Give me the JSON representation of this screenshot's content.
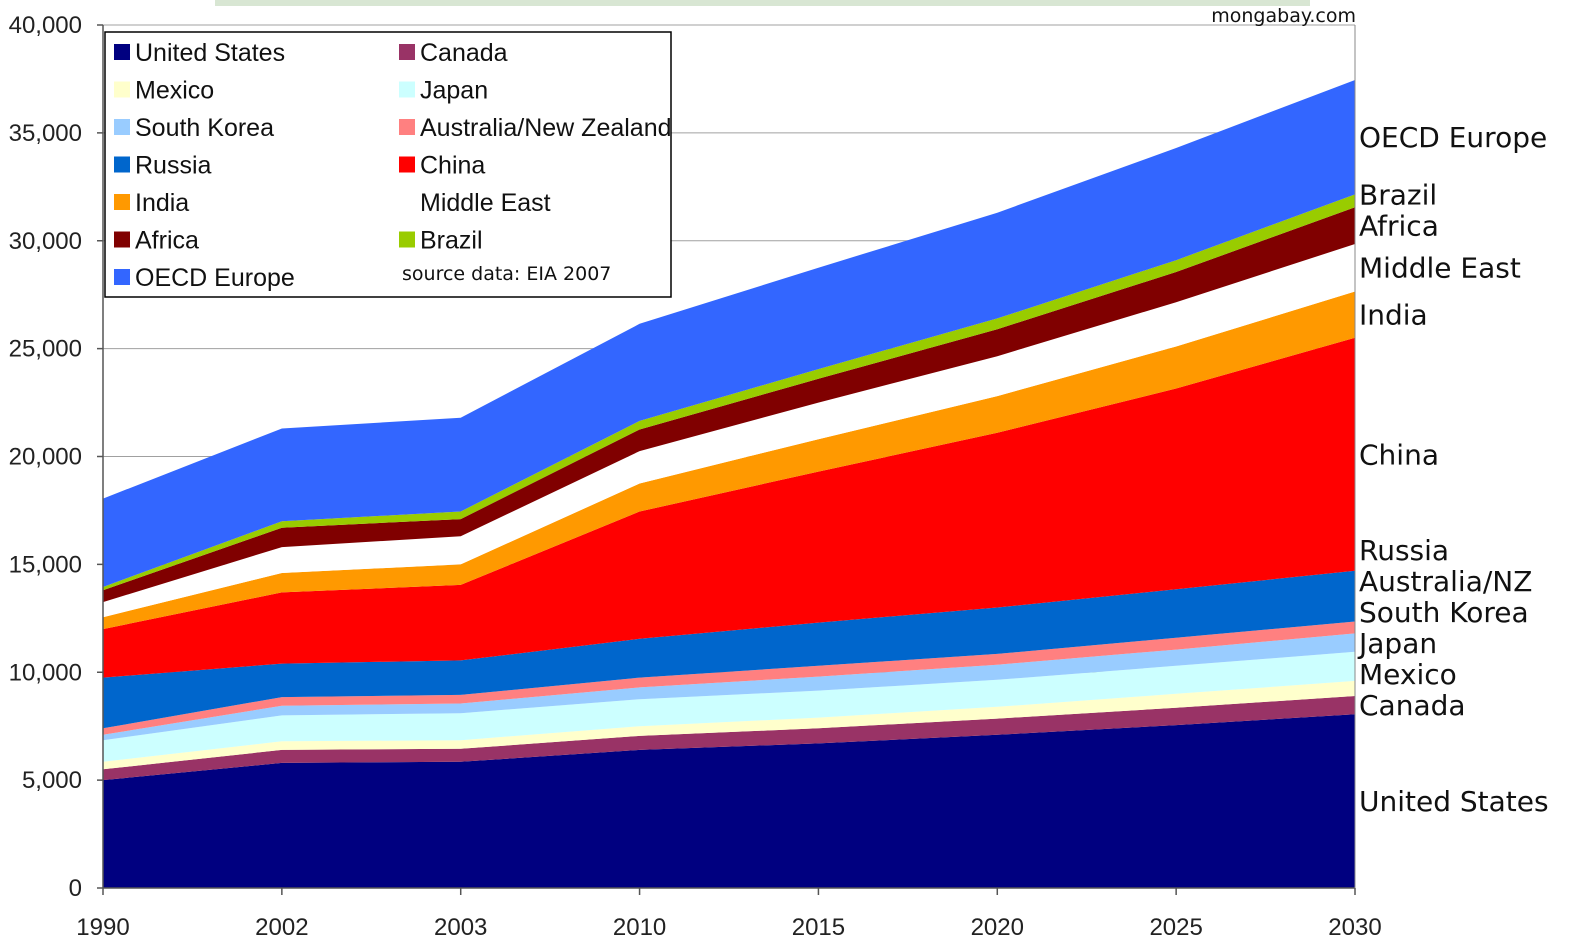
{
  "watermark": "mongabay.com",
  "chart_data": {
    "type": "area",
    "stacked": true,
    "x": [
      "1990",
      "2002",
      "2003",
      "2010",
      "2015",
      "2020",
      "2025",
      "2030"
    ],
    "ylim": [
      0,
      40000
    ],
    "yticks": [
      0,
      5000,
      10000,
      15000,
      20000,
      25000,
      30000,
      35000,
      40000
    ],
    "ytick_labels": [
      "0",
      "5,000",
      "10,000",
      "15,000",
      "20,000",
      "25,000",
      "30,000",
      "35,000",
      "40,000"
    ],
    "grid": "horizontal",
    "legend_position": "top-left",
    "source_note": "source data: EIA 2007",
    "series": [
      {
        "name": "United States",
        "color": "#000080",
        "values": [
          5000,
          5800,
          5850,
          6400,
          6700,
          7100,
          7550,
          8050
        ],
        "side_label": "United States"
      },
      {
        "name": "Canada",
        "color": "#993366",
        "values": [
          500,
          600,
          600,
          650,
          700,
          750,
          800,
          850
        ],
        "side_label": "Canada"
      },
      {
        "name": "Mexico",
        "color": "#ffffcc",
        "values": [
          350,
          400,
          400,
          450,
          500,
          550,
          650,
          700
        ],
        "side_label": "Mexico"
      },
      {
        "name": "Japan",
        "color": "#ccffff",
        "values": [
          1000,
          1200,
          1250,
          1250,
          1250,
          1250,
          1300,
          1350
        ],
        "side_label": "Japan"
      },
      {
        "name": "South Korea",
        "color": "#99ccff",
        "values": [
          250,
          450,
          450,
          550,
          650,
          700,
          750,
          850
        ],
        "side_label": "South Korea"
      },
      {
        "name": "Australia/New Zealand",
        "color": "#ff8080",
        "values": [
          300,
          400,
          400,
          450,
          500,
          500,
          550,
          550
        ],
        "side_label": "Australia/NZ"
      },
      {
        "name": "Russia",
        "color": "#0066cc",
        "values": [
          2350,
          1550,
          1600,
          1800,
          2000,
          2150,
          2250,
          2350
        ],
        "side_label": "Russia"
      },
      {
        "name": "China",
        "color": "#ff0000",
        "values": [
          2250,
          3300,
          3500,
          5900,
          7000,
          8100,
          9300,
          10800
        ],
        "side_label": "China"
      },
      {
        "name": "India",
        "color": "#ff9900",
        "values": [
          550,
          900,
          950,
          1300,
          1500,
          1700,
          1950,
          2150
        ],
        "side_label": "India"
      },
      {
        "name": "Middle East",
        "color": "#ffffff",
        "values": [
          700,
          1200,
          1300,
          1500,
          1700,
          1850,
          2050,
          2200
        ],
        "side_label": "Middle East"
      },
      {
        "name": "Africa",
        "color": "#800000",
        "values": [
          550,
          900,
          800,
          1000,
          1100,
          1250,
          1400,
          1700
        ],
        "side_label": "Africa"
      },
      {
        "name": "Brazil",
        "color": "#99cc00",
        "values": [
          150,
          300,
          350,
          400,
          450,
          500,
          550,
          600
        ],
        "side_label": "Brazil"
      },
      {
        "name": "OECD Europe",
        "color": "#3366ff",
        "values": [
          4100,
          4300,
          4350,
          4500,
          4700,
          4900,
          5200,
          5300
        ],
        "side_label": "OECD Europe"
      }
    ]
  }
}
